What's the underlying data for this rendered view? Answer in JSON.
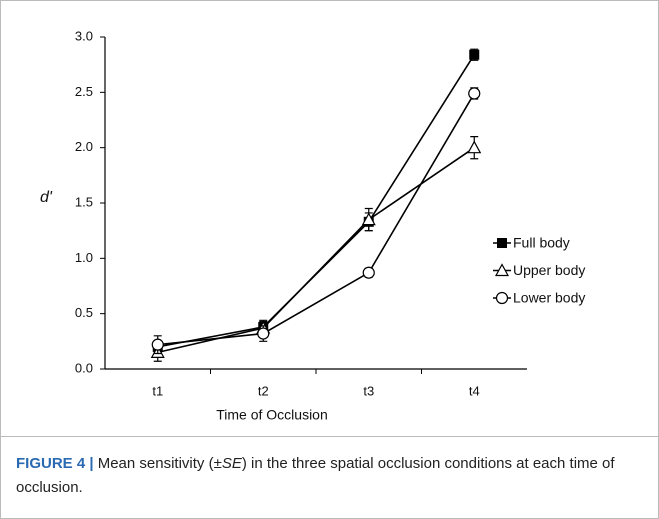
{
  "chart_data": {
    "type": "line",
    "xlabel": "Time of Occlusion",
    "ylabel": "d'",
    "categories": [
      "t1",
      "t2",
      "t3",
      "t4"
    ],
    "series": [
      {
        "name": "Full body",
        "color": "#000000",
        "marker": "square",
        "values": [
          0.2,
          0.38,
          1.33,
          2.84
        ],
        "errors": [
          0.05,
          0.05,
          0.08,
          0.05
        ]
      },
      {
        "name": "Upper body",
        "color": "#000000",
        "marker": "triangle",
        "values": [
          0.15,
          0.37,
          1.35,
          2.0
        ],
        "errors": [
          0.08,
          0.07,
          0.1,
          0.1
        ]
      },
      {
        "name": "Lower body",
        "color": "#000000",
        "marker": "circle",
        "values": [
          0.22,
          0.32,
          0.87,
          2.49
        ],
        "errors": [
          0.08,
          0.07,
          0.04,
          0.05
        ]
      }
    ],
    "ylim": [
      0,
      3
    ],
    "yticks": [
      {
        "value": 0,
        "label": "0.0"
      },
      0.5,
      {
        "value": 1,
        "label": "1.0"
      },
      1.5,
      {
        "value": 2,
        "label": "2.0"
      },
      2.5,
      {
        "value": 3,
        "label": "3.0"
      }
    ],
    "legend": "right"
  },
  "caption": {
    "label": "FIGURE 4 |",
    "text": [
      "Mean sensitivity (±",
      "SE",
      ") in the three spatial occlusion conditions at each time of occlusion."
    ]
  }
}
